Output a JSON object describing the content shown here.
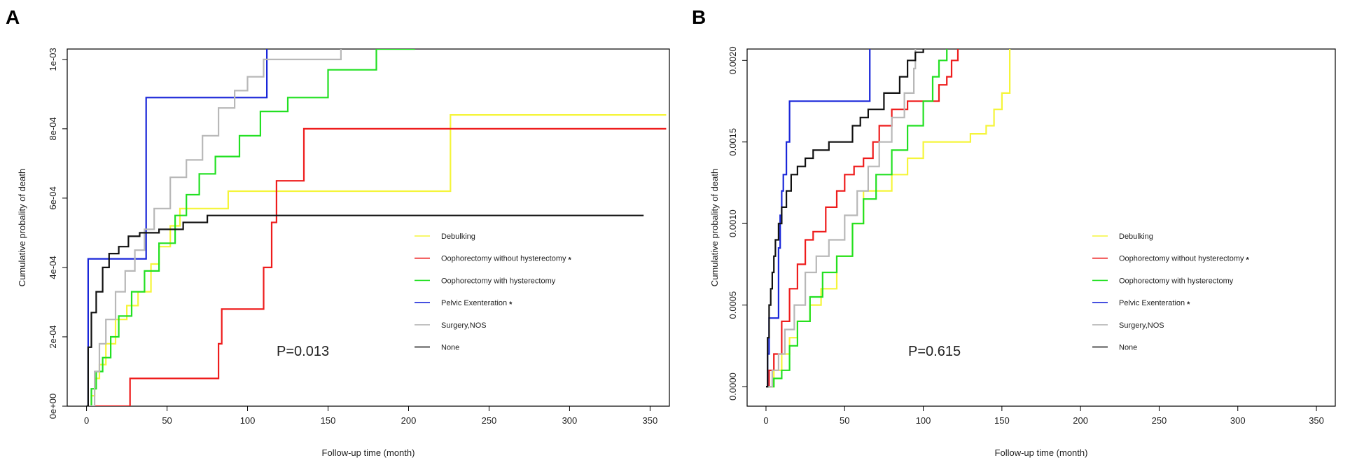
{
  "chart_data": [
    {
      "panel": "A",
      "type": "line",
      "xlabel": "Follow-up time (month)",
      "ylabel": "Cumulative probality of death",
      "xlim": [
        -12,
        362
      ],
      "ylim": [
        0,
        0.00103
      ],
      "xticks": [
        0,
        50,
        100,
        150,
        200,
        250,
        300,
        350
      ],
      "xtick_labels": [
        "0",
        "50",
        "100",
        "150",
        "200",
        "250",
        "300",
        "350"
      ],
      "yticks": [
        0,
        0.0002,
        0.0004,
        0.0006,
        0.0008,
        0.001
      ],
      "ytick_labels": [
        "0e+00",
        "2e-04",
        "4e-04",
        "6e-04",
        "8e-04",
        "1e-03"
      ],
      "p_value": "P=0.013",
      "legend_position": "center-right",
      "series": [
        {
          "name": "Debulking",
          "color": "#f5f53a",
          "marker": "",
          "x": [
            0,
            3,
            5,
            8,
            12,
            18,
            25,
            32,
            40,
            45,
            52,
            58,
            65,
            75,
            88,
            110,
            140,
            180,
            226,
            360
          ],
          "y": [
            0,
            3e-05,
            8e-05,
            0.00012,
            0.00018,
            0.00025,
            0.00029,
            0.00033,
            0.00041,
            0.00046,
            0.00052,
            0.00057,
            0.00057,
            0.00057,
            0.00062,
            0.00062,
            0.00062,
            0.00062,
            0.00084,
            0.00084
          ]
        },
        {
          "name": "Oophorectomy without hysterectomy",
          "color": "#ee1c1c",
          "marker": "*",
          "x": [
            0,
            27,
            82,
            84,
            110,
            115,
            118,
            120,
            135,
            360
          ],
          "y": [
            0,
            8e-05,
            0.00018,
            0.00028,
            0.0004,
            0.00053,
            0.00065,
            0.00065,
            0.0008,
            0.0008
          ],
          "segments": "step"
        },
        {
          "name": "Oophorectomy with hysterectomy",
          "color": "#22e022",
          "marker": "",
          "x": [
            0,
            3,
            6,
            10,
            15,
            20,
            28,
            36,
            45,
            55,
            62,
            70,
            80,
            95,
            108,
            125,
            150,
            180,
            203,
            204
          ],
          "y": [
            0,
            5e-05,
            0.0001,
            0.00014,
            0.0002,
            0.00026,
            0.00033,
            0.00039,
            0.00047,
            0.00055,
            0.00061,
            0.00067,
            0.00072,
            0.00078,
            0.00085,
            0.00089,
            0.00097,
            0.00103,
            0.00103,
            0.00103
          ]
        },
        {
          "name": "Pelvic Exenteration",
          "color": "#1a27d9",
          "marker": "*",
          "x": [
            0,
            1,
            36,
            37,
            111,
            112
          ],
          "y": [
            0,
            0.000425,
            0.000425,
            0.00089,
            0.00089,
            0.00103
          ]
        },
        {
          "name": "Surgery,NOS",
          "color": "#b8b8b8",
          "marker": "",
          "x": [
            0,
            5,
            8,
            12,
            18,
            24,
            30,
            36,
            42,
            52,
            62,
            72,
            82,
            92,
            100,
            110,
            130,
            158
          ],
          "y": [
            0,
            0.0001,
            0.00018,
            0.00025,
            0.00033,
            0.00039,
            0.00045,
            0.00051,
            0.00057,
            0.00066,
            0.00071,
            0.00078,
            0.00086,
            0.00091,
            0.00095,
            0.001,
            0.001,
            0.00103
          ]
        },
        {
          "name": "None",
          "color": "#111111",
          "marker": "",
          "x": [
            0,
            1,
            3,
            6,
            10,
            14,
            20,
            26,
            33,
            45,
            60,
            75,
            120,
            200,
            346
          ],
          "y": [
            0,
            0.00017,
            0.00027,
            0.00033,
            0.0004,
            0.00044,
            0.00046,
            0.00049,
            0.0005,
            0.00051,
            0.00053,
            0.00055,
            0.00055,
            0.00055,
            0.00055
          ]
        }
      ]
    },
    {
      "panel": "B",
      "type": "line",
      "xlabel": "Follow-up time (month)",
      "ylabel": "Cumulative probality of death",
      "xlim": [
        -12,
        362
      ],
      "ylim": [
        -0.00012,
        0.00207
      ],
      "xticks": [
        0,
        50,
        100,
        150,
        200,
        250,
        300,
        350
      ],
      "xtick_labels": [
        "0",
        "50",
        "100",
        "150",
        "200",
        "250",
        "300",
        "350"
      ],
      "yticks": [
        0,
        0.0005,
        0.001,
        0.0015,
        0.002
      ],
      "ytick_labels": [
        "0.0000",
        "0.0005",
        "0.0010",
        "0.0015",
        "0.0020"
      ],
      "p_value": "P=0.615",
      "legend_position": "center-right",
      "series": [
        {
          "name": "Debulking",
          "color": "#f5f53a",
          "marker": "",
          "x": [
            0,
            5,
            10,
            15,
            20,
            28,
            35,
            45,
            55,
            62,
            70,
            80,
            90,
            100,
            115,
            130,
            140,
            145,
            150,
            155
          ],
          "y": [
            0,
            0.0001,
            0.0002,
            0.0003,
            0.0004,
            0.0005,
            0.0006,
            0.0008,
            0.001,
            0.0012,
            0.0012,
            0.0013,
            0.0014,
            0.0015,
            0.0015,
            0.00155,
            0.0016,
            0.0017,
            0.0018,
            0.0021
          ]
        },
        {
          "name": "Oophorectomy without hysterectomy",
          "color": "#ee1c1c",
          "marker": "*",
          "x": [
            0,
            2,
            5,
            10,
            15,
            20,
            25,
            30,
            38,
            45,
            50,
            56,
            62,
            68,
            72,
            80,
            90,
            100,
            110,
            115,
            118,
            122,
            125
          ],
          "y": [
            0,
            0.0001,
            0.0002,
            0.0004,
            0.0006,
            0.00075,
            0.0009,
            0.00095,
            0.0011,
            0.0012,
            0.0013,
            0.00135,
            0.0014,
            0.0015,
            0.0016,
            0.0017,
            0.00175,
            0.00175,
            0.00185,
            0.0019,
            0.002,
            0.0021,
            0.0021
          ]
        },
        {
          "name": "Oophorectomy with hysterectomy",
          "color": "#22e022",
          "marker": "",
          "x": [
            0,
            5,
            10,
            15,
            20,
            28,
            36,
            45,
            55,
            62,
            70,
            80,
            90,
            100,
            106,
            110,
            115
          ],
          "y": [
            0,
            5e-05,
            0.0001,
            0.00025,
            0.0004,
            0.00055,
            0.0007,
            0.0008,
            0.001,
            0.00115,
            0.0013,
            0.00145,
            0.0016,
            0.00175,
            0.0019,
            0.002,
            0.0021
          ]
        },
        {
          "name": "Pelvic Exenteration",
          "color": "#1a27d9",
          "marker": "*",
          "x": [
            0,
            1,
            2,
            4,
            8,
            9,
            10,
            11,
            13,
            15,
            65,
            66
          ],
          "y": [
            0,
            0.0002,
            0.00042,
            0.00042,
            0.00085,
            0.00105,
            0.0012,
            0.0013,
            0.0015,
            0.00175,
            0.00175,
            0.0021
          ]
        },
        {
          "name": "Surgery,NOS",
          "color": "#b8b8b8",
          "marker": "",
          "x": [
            0,
            4,
            8,
            12,
            18,
            25,
            32,
            40,
            50,
            58,
            65,
            72,
            80,
            88,
            94,
            95
          ],
          "y": [
            0,
            0.0001,
            0.0002,
            0.00035,
            0.0005,
            0.0007,
            0.0008,
            0.0009,
            0.00105,
            0.0012,
            0.00135,
            0.0015,
            0.00165,
            0.0018,
            0.00195,
            0.0021
          ]
        },
        {
          "name": "None",
          "color": "#111111",
          "marker": "",
          "x": [
            0,
            1,
            2,
            3,
            4,
            5,
            6,
            8,
            10,
            13,
            16,
            20,
            25,
            30,
            40,
            55,
            60,
            65,
            75,
            85,
            90,
            95,
            100,
            348
          ],
          "y": [
            0,
            0.0003,
            0.0005,
            0.0006,
            0.0007,
            0.0008,
            0.0009,
            0.001,
            0.0011,
            0.0012,
            0.0013,
            0.00135,
            0.0014,
            0.00145,
            0.0015,
            0.0016,
            0.00165,
            0.0017,
            0.0018,
            0.0019,
            0.002,
            0.00205,
            0.0021,
            0.0021
          ]
        }
      ]
    }
  ]
}
